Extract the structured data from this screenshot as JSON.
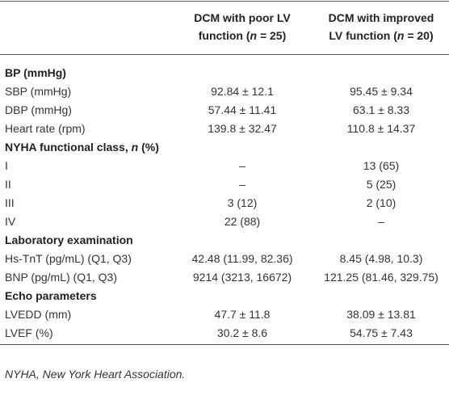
{
  "table": {
    "header": [
      {
        "lines": [
          "DCM with poor LV",
          {
            "before": "function (",
            "italic": "n",
            "after": " = 25)"
          }
        ]
      },
      {
        "lines": [
          "DCM with improved",
          {
            "before": "LV function (",
            "italic": "n",
            "after": " = 20)"
          }
        ]
      }
    ],
    "rows": [
      {
        "section": "BP (mmHg)"
      },
      {
        "cells": [
          "SBP (mmHg)",
          "92.84 ± 12.1",
          "95.45 ± 9.34"
        ]
      },
      {
        "cells": [
          "DBP (mmHg)",
          "57.44 ± 11.41",
          "63.1 ± 8.33"
        ]
      },
      {
        "cells": [
          "Heart rate (rpm)",
          "139.8 ± 32.47",
          "110.8 ± 14.37"
        ]
      },
      {
        "section_parts": {
          "before": "NYHA functional class, ",
          "italic": "n",
          "after": " (%)"
        }
      },
      {
        "cells": [
          "I",
          "–",
          "13 (65)"
        ]
      },
      {
        "cells": [
          "II",
          "–",
          "5 (25)"
        ]
      },
      {
        "cells": [
          "III",
          "3 (12)",
          "2 (10)"
        ]
      },
      {
        "cells": [
          "IV",
          "22 (88)",
          "–"
        ]
      },
      {
        "section": "Laboratory examination"
      },
      {
        "cells": [
          "Hs-TnT (pg/mL) (Q1, Q3)",
          "42.48 (11.99, 82.36)",
          "8.45 (4.98, 10.3)"
        ]
      },
      {
        "cells": [
          "BNP (pg/mL) (Q1, Q3)",
          "9214 (3213, 16672)",
          "121.25 (81.46, 329.75)"
        ]
      },
      {
        "section": "Echo parameters"
      },
      {
        "cells": [
          "LVEDD (mm)",
          "47.7 ± 11.8",
          "38.09 ± 13.81"
        ]
      },
      {
        "cells": [
          "LVEF (%)",
          "30.2 ± 8.6",
          "54.75 ± 7.43"
        ]
      }
    ],
    "footnote": "NYHA, New York Heart Association."
  }
}
